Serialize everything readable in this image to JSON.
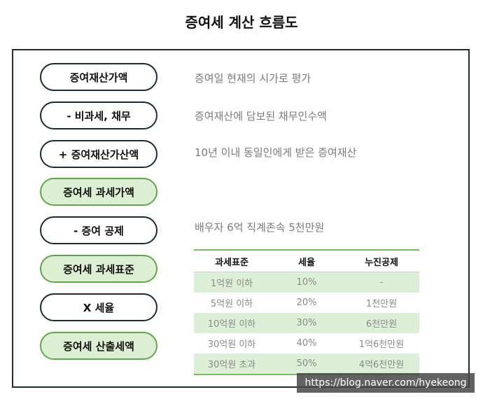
{
  "title": "증여세 계산 흐름도",
  "steps": [
    {
      "label": "증여재산가액",
      "desc": "증여일 현재의 시가로 평가"
    },
    {
      "label": "- 비과세, 채무",
      "desc": "증여재산에 담보된 채무인수액"
    },
    {
      "label": "+ 증여재산가산액",
      "desc": "10년 이내 동일인에게 받은 증여재산"
    },
    {
      "label": "증여세 과세가액",
      "desc": ""
    },
    {
      "label": "- 증여 공제",
      "desc": "배우자 6억 직계존속 5천만원"
    },
    {
      "label": "증여세 과세표준",
      "desc": ""
    },
    {
      "label": "X 세율",
      "desc": ""
    },
    {
      "label": "증여세 산출세액",
      "desc": ""
    }
  ],
  "table": {
    "headers": [
      "과세표준",
      "세율",
      "누진공제"
    ],
    "rows": [
      [
        "1억원 이하",
        "10%",
        "-"
      ],
      [
        "5억원 이하",
        "20%",
        "1천만원"
      ],
      [
        "10억원 이하",
        "30%",
        "6천만원"
      ],
      [
        "30억원 이하",
        "40%",
        "1억6천만원"
      ],
      [
        "30억원 초과",
        "50%",
        "4억6천만원"
      ]
    ]
  },
  "watermark": "https://blog.naver.com/hyekeong",
  "colors": {
    "green_fill": "#dcefd2",
    "green_border": "#5fa84a",
    "dark_border": "#1d2a33",
    "table_shade": "#ddefd6",
    "table_rule": "#6fbf5a"
  }
}
